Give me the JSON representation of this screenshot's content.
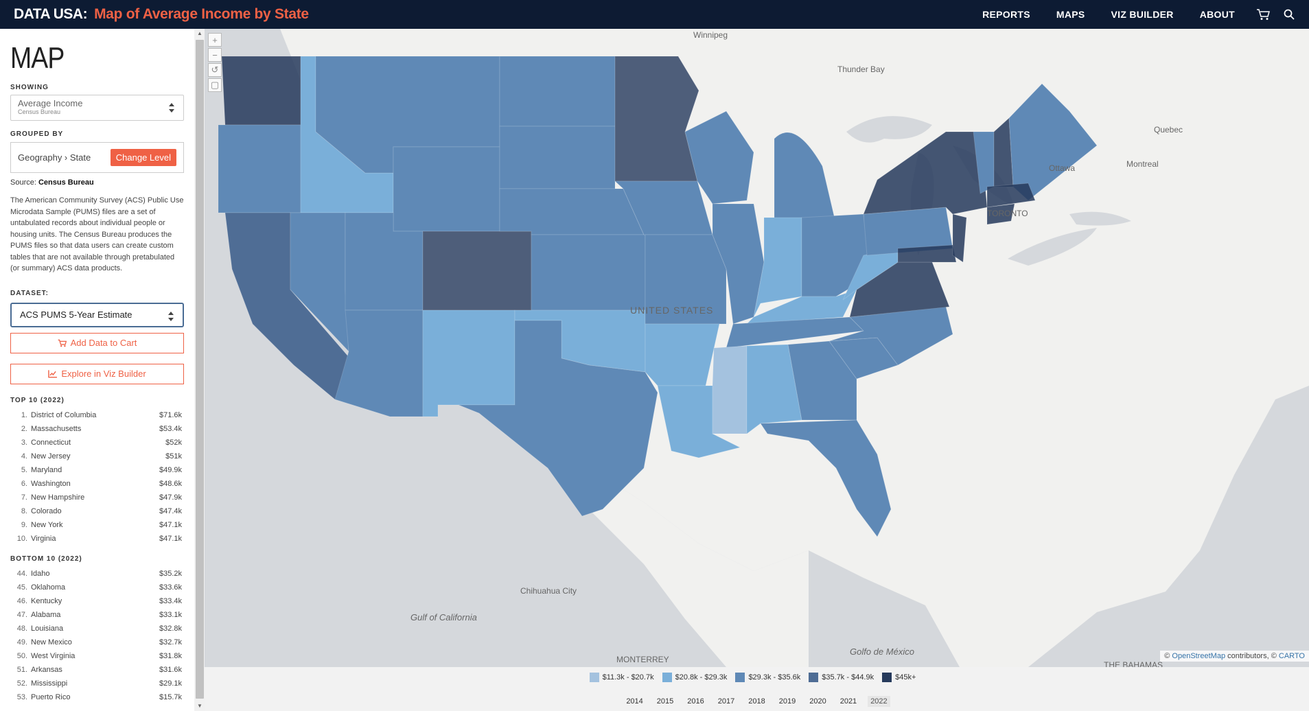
{
  "header": {
    "brand": "DATA USA:",
    "page_title": "Map of Average Income by State",
    "nav": [
      "REPORTS",
      "MAPS",
      "VIZ BUILDER",
      "ABOUT"
    ]
  },
  "sidebar": {
    "title": "MAP",
    "showing_label": "SHOWING",
    "showing_main": "Average Income",
    "showing_sub": "Census Bureau",
    "grouped_label": "GROUPED BY",
    "grouped_value": "Geography › State",
    "change_level": "Change Level",
    "source_prefix": "Source:",
    "source_name": "Census Bureau",
    "description": "The American Community Survey (ACS) Public Use Microdata Sample (PUMS) files are a set of untabulated records about individual people or housing units. The Census Bureau produces the PUMS files so that data users can create custom tables that are not available through pretabulated (or summary) ACS data products.",
    "dataset_label": "DATASET:",
    "dataset_value": "ACS PUMS 5-Year Estimate",
    "add_cart": "Add Data to Cart",
    "explore": "Explore in Viz Builder",
    "top_label": "TOP 10 (2022)",
    "top": [
      {
        "rank": "1.",
        "name": "District of Columbia",
        "value": "$71.6k"
      },
      {
        "rank": "2.",
        "name": "Massachusetts",
        "value": "$53.4k"
      },
      {
        "rank": "3.",
        "name": "Connecticut",
        "value": "$52k"
      },
      {
        "rank": "4.",
        "name": "New Jersey",
        "value": "$51k"
      },
      {
        "rank": "5.",
        "name": "Maryland",
        "value": "$49.9k"
      },
      {
        "rank": "6.",
        "name": "Washington",
        "value": "$48.6k"
      },
      {
        "rank": "7.",
        "name": "New Hampshire",
        "value": "$47.9k"
      },
      {
        "rank": "8.",
        "name": "Colorado",
        "value": "$47.4k"
      },
      {
        "rank": "9.",
        "name": "New York",
        "value": "$47.1k"
      },
      {
        "rank": "10.",
        "name": "Virginia",
        "value": "$47.1k"
      }
    ],
    "bottom_label": "BOTTOM 10 (2022)",
    "bottom": [
      {
        "rank": "44.",
        "name": "Idaho",
        "value": "$35.2k"
      },
      {
        "rank": "45.",
        "name": "Oklahoma",
        "value": "$33.6k"
      },
      {
        "rank": "46.",
        "name": "Kentucky",
        "value": "$33.4k"
      },
      {
        "rank": "47.",
        "name": "Alabama",
        "value": "$33.1k"
      },
      {
        "rank": "48.",
        "name": "Louisiana",
        "value": "$32.8k"
      },
      {
        "rank": "49.",
        "name": "New Mexico",
        "value": "$32.7k"
      },
      {
        "rank": "50.",
        "name": "West Virginia",
        "value": "$31.8k"
      },
      {
        "rank": "51.",
        "name": "Arkansas",
        "value": "$31.6k"
      },
      {
        "rank": "52.",
        "name": "Mississippi",
        "value": "$29.1k"
      },
      {
        "rank": "53.",
        "name": "Puerto Rico",
        "value": "$15.7k"
      }
    ]
  },
  "map": {
    "attribution_prefix": "©",
    "attribution_osm": "OpenStreetMap",
    "attribution_rest": "contributors, ©",
    "attribution_carto": "CARTO",
    "colors": {
      "c1": "#a4c2df",
      "c2": "#7aafd9",
      "c3": "#5f89b6",
      "c4": "#4f6d95",
      "c5": "#263a5c"
    },
    "labels": {
      "winnipeg": "Winnipeg",
      "thunder_bay": "Thunder Bay",
      "quebec": "Quebec",
      "montreal": "Montreal",
      "ottawa": "Ottawa",
      "toronto": "TORONTO",
      "united_states": "UNITED STATES",
      "gulf_california": "Gulf of California",
      "golfo_mexico": "Golfo de México",
      "monterrey": "MONTERREY",
      "chihuahua": "Chihuahua City",
      "bahamas": "THE BAHAMAS"
    }
  },
  "legend": [
    {
      "label": "$11.3k - $20.7k",
      "color": "#a4c2df"
    },
    {
      "label": "$20.8k - $29.3k",
      "color": "#7aafd9"
    },
    {
      "label": "$29.3k - $35.6k",
      "color": "#5f89b6"
    },
    {
      "label": "$35.7k - $44.9k",
      "color": "#4f6d95"
    },
    {
      "label": "$45k+",
      "color": "#263a5c"
    }
  ],
  "years": [
    "2014",
    "2015",
    "2016",
    "2017",
    "2018",
    "2019",
    "2020",
    "2021",
    "2022"
  ],
  "active_year": "2022"
}
